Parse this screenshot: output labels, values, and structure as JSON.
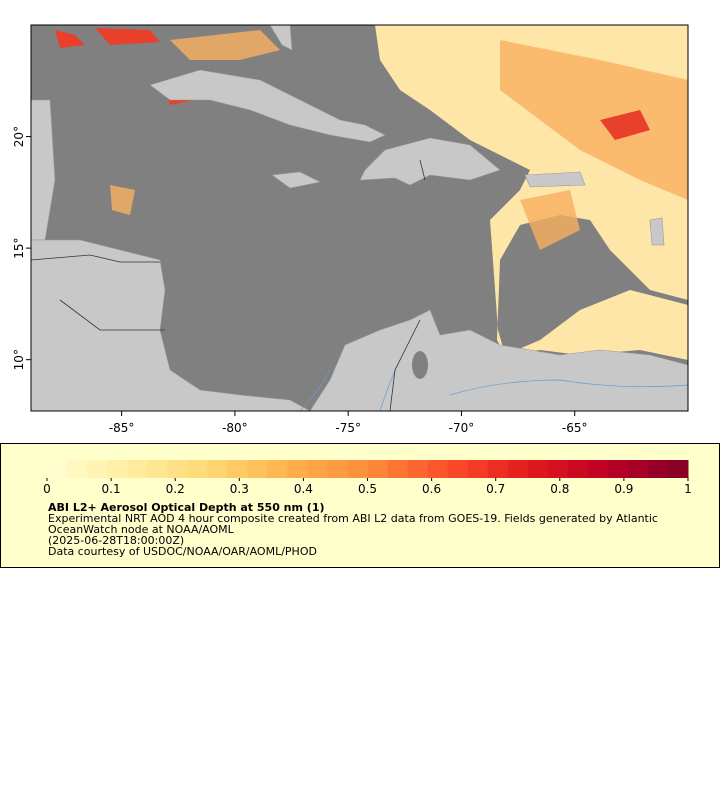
{
  "map": {
    "xlim": [
      -89,
      -60
    ],
    "ylim": [
      7.7,
      25
    ],
    "xticks": [
      {
        "value": -85,
        "label": "-85°"
      },
      {
        "value": -80,
        "label": "-80°"
      },
      {
        "value": -75,
        "label": "-75°"
      },
      {
        "value": -70,
        "label": "-70°"
      },
      {
        "value": -65,
        "label": "-65°"
      }
    ],
    "yticks": [
      {
        "value": 10,
        "label": "10°"
      },
      {
        "value": 15,
        "label": "15°"
      },
      {
        "value": 20,
        "label": "20°"
      }
    ]
  },
  "colorbar": {
    "lim": [
      0,
      1
    ],
    "ticks": [
      0,
      0.1,
      0.2,
      0.3,
      0.4,
      0.5,
      0.6,
      0.7,
      0.8,
      0.9,
      1
    ],
    "colors": [
      "#ffffd4",
      "#ffeda0",
      "#fed976",
      "#feb24c",
      "#fd8d3c",
      "#fc4e2a",
      "#e31a1c",
      "#bd0026",
      "#800026"
    ]
  },
  "legend": {
    "title": "ABI L2+ Aerosol Optical Depth at 550 nm (1)",
    "lines": [
      "Experimental NRT AOD 4 hour composite created from ABI L2 data from GOES-19. Fields generated by Atlantic",
      "OceanWatch node at NOAA/AOML",
      "(2025-06-28T18:00:00Z)",
      "Data courtesy of USDOC/NOAA/OAR/AOML/PHOD"
    ]
  }
}
